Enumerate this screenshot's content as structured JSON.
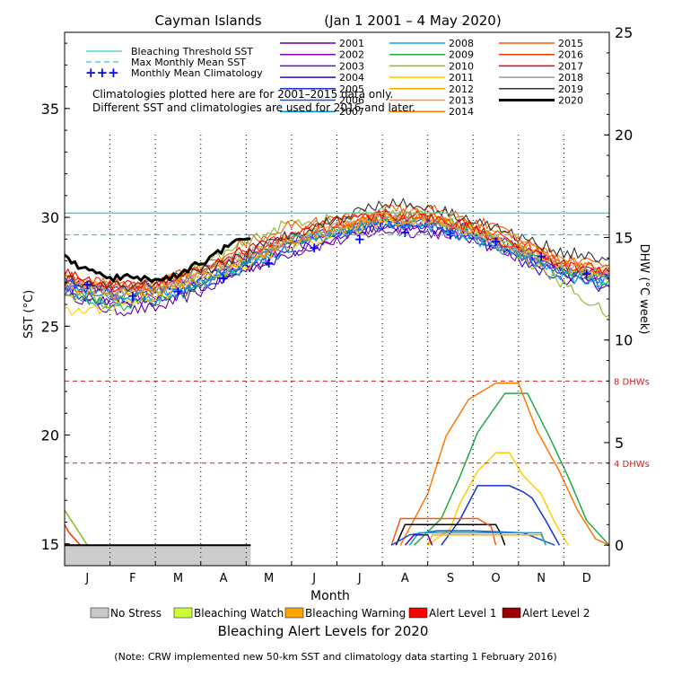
{
  "chart_data": {
    "type": "line",
    "title": "Cayman Islands",
    "subtitle": "(Jan 1 2001 – 4 May 2020)",
    "xlabel": "Month",
    "ylabel_left": "SST (°C)",
    "ylabel_right": "DHW (°C week)",
    "x_tick_labels": [
      "J",
      "F",
      "M",
      "A",
      "M",
      "J",
      "J",
      "A",
      "S",
      "O",
      "N",
      "D"
    ],
    "sst_ylim": [
      14,
      38.5
    ],
    "sst_yticks": [
      15,
      20,
      25,
      30,
      35
    ],
    "dhw_ylim": [
      -1,
      25
    ],
    "dhw_yticks": [
      0,
      5,
      10,
      15,
      20,
      25
    ],
    "bleaching_threshold_sst": 30.2,
    "max_monthly_mean_sst": 29.2,
    "dhw_reference_lines": [
      {
        "value": 8,
        "label": "8 DHWs",
        "color": "#cc2222"
      },
      {
        "value": 4,
        "label": "4 DHWs",
        "color": "#cc2222"
      }
    ],
    "legend_reference": [
      {
        "label": "Bleaching Threshold SST",
        "color": "#33cccc",
        "style": "solid"
      },
      {
        "label": "Max Monthly Mean SST",
        "color": "#33cccc",
        "style": "dashed"
      },
      {
        "label": "Monthly Mean Climatology",
        "color": "#0000ff",
        "style": "plus"
      }
    ],
    "note_lines": [
      "Climatologies plotted here are for 2001–2015 data only.",
      "Different SST and climatologies are used for 2016 and later."
    ],
    "monthly_mean_climatology": {
      "x": [
        0.5,
        1.5,
        2.5,
        3.5,
        4.5,
        5.5,
        6.5,
        7.5,
        8.5,
        9.5,
        10.5,
        11.5
      ],
      "sst": [
        26.9,
        26.4,
        26.6,
        27.2,
        27.9,
        28.6,
        29.0,
        29.3,
        29.2,
        28.9,
        28.2,
        27.4
      ]
    },
    "series": [
      {
        "name": "2001",
        "color": "#660099",
        "x": [
          0,
          1,
          2,
          3,
          4,
          5,
          6,
          7,
          8,
          9,
          10,
          11,
          12
        ],
        "sst": [
          26.6,
          25.7,
          25.8,
          26.6,
          27.6,
          28.4,
          28.9,
          29.4,
          29.3,
          29.1,
          28.2,
          27.3,
          26.9
        ]
      },
      {
        "name": "2002",
        "color": "#8800bb",
        "x": [
          0,
          1,
          2,
          3,
          4,
          5,
          6,
          7,
          8,
          9,
          10,
          11,
          12
        ],
        "sst": [
          26.8,
          26.1,
          26.3,
          26.9,
          27.7,
          28.7,
          29.1,
          29.6,
          29.5,
          29.1,
          28.3,
          27.5,
          27.1
        ]
      },
      {
        "name": "2003",
        "color": "#7700dd",
        "x": [
          0,
          1,
          2,
          3,
          4,
          5,
          6,
          7,
          8,
          9,
          10,
          11,
          12
        ],
        "sst": [
          27.0,
          26.6,
          26.8,
          27.3,
          28.0,
          28.9,
          29.3,
          29.8,
          29.7,
          29.4,
          28.6,
          27.7,
          27.3
        ]
      },
      {
        "name": "2004",
        "color": "#3300cc",
        "x": [
          0,
          1,
          2,
          3,
          4,
          5,
          6,
          7,
          8,
          9,
          10,
          11,
          12
        ],
        "sst": [
          26.7,
          26.0,
          26.1,
          26.8,
          27.6,
          28.4,
          29.1,
          29.6,
          29.5,
          29.0,
          28.0,
          27.1,
          26.8
        ]
      },
      {
        "name": "2005",
        "color": "#1133cc",
        "x": [
          0,
          1,
          2,
          3,
          4,
          5,
          6,
          7,
          8,
          9,
          10,
          11,
          12
        ],
        "sst": [
          27.0,
          26.6,
          26.7,
          27.2,
          28.2,
          29.0,
          29.4,
          29.9,
          29.7,
          29.3,
          28.5,
          27.6,
          27.2
        ]
      },
      {
        "name": "2006",
        "color": "#1155dd",
        "x": [
          0,
          1,
          2,
          3,
          4,
          5,
          6,
          7,
          8,
          9,
          10,
          11,
          12
        ],
        "sst": [
          26.9,
          26.4,
          26.6,
          27.1,
          27.9,
          28.9,
          29.3,
          29.9,
          29.7,
          29.2,
          28.4,
          27.5,
          27.2
        ]
      },
      {
        "name": "2007",
        "color": "#0088dd",
        "x": [
          0,
          1,
          2,
          3,
          4,
          5,
          6,
          7,
          8,
          9,
          10,
          11,
          12
        ],
        "sst": [
          27.0,
          26.3,
          26.4,
          27.0,
          28.0,
          28.9,
          29.3,
          29.7,
          29.6,
          29.1,
          28.3,
          27.6,
          27.1
        ]
      },
      {
        "name": "2008",
        "color": "#00aadd",
        "x": [
          0,
          1,
          2,
          3,
          4,
          5,
          6,
          7,
          8,
          9,
          10,
          11,
          12
        ],
        "sst": [
          26.6,
          26.0,
          26.3,
          26.9,
          27.7,
          28.6,
          29.2,
          29.8,
          29.6,
          29.0,
          28.3,
          27.3,
          26.9
        ]
      },
      {
        "name": "2009",
        "color": "#22aa44",
        "x": [
          0,
          1,
          2,
          3,
          4,
          5,
          6,
          7,
          8,
          9,
          10,
          11,
          12
        ],
        "sst": [
          26.7,
          25.9,
          26.1,
          26.8,
          28.0,
          29.0,
          29.4,
          30.1,
          30.0,
          29.5,
          28.6,
          27.6,
          27.1
        ]
      },
      {
        "name": "2010",
        "color": "#88bb22",
        "x": [
          0,
          1,
          2,
          3,
          4,
          5,
          6,
          7,
          8,
          9,
          10,
          11,
          12
        ],
        "sst": [
          26.4,
          26.3,
          26.7,
          27.8,
          28.8,
          29.8,
          29.9,
          30.3,
          30.0,
          29.4,
          28.3,
          26.9,
          25.5
        ]
      },
      {
        "name": "2011",
        "color": "#ffcc00",
        "x": [
          0,
          1,
          2,
          3,
          4,
          5,
          6,
          7,
          8,
          9,
          10,
          11,
          12
        ],
        "sst": [
          25.6,
          25.9,
          26.4,
          27.1,
          27.8,
          28.8,
          29.2,
          29.9,
          29.9,
          29.5,
          28.6,
          27.7,
          27.2
        ]
      },
      {
        "name": "2012",
        "color": "#ffaa00",
        "x": [
          0,
          1,
          2,
          3,
          4,
          5,
          6,
          7,
          8,
          9,
          10,
          11,
          12
        ],
        "sst": [
          27.2,
          26.7,
          26.8,
          27.4,
          28.2,
          29.0,
          29.5,
          30.0,
          29.9,
          29.4,
          28.6,
          27.8,
          27.4
        ]
      },
      {
        "name": "2013",
        "color": "#ff9933",
        "x": [
          0,
          1,
          2,
          3,
          4,
          5,
          6,
          7,
          8,
          9,
          10,
          11,
          12
        ],
        "sst": [
          27.3,
          26.8,
          26.9,
          27.6,
          28.2,
          29.1,
          29.5,
          30.0,
          29.8,
          29.4,
          28.7,
          27.9,
          27.6
        ]
      },
      {
        "name": "2014",
        "color": "#ff7700",
        "x": [
          0,
          1,
          2,
          3,
          4,
          5,
          6,
          7,
          8,
          9,
          10,
          11,
          12
        ],
        "sst": [
          26.9,
          26.5,
          26.6,
          27.3,
          28.1,
          28.9,
          29.6,
          30.1,
          30.2,
          29.7,
          28.9,
          28.0,
          27.6
        ]
      },
      {
        "name": "2015",
        "color": "#ff5500",
        "x": [
          0,
          1,
          2,
          3,
          4,
          5,
          6,
          7,
          8,
          9,
          10,
          11,
          12
        ],
        "sst": [
          27.2,
          26.9,
          26.8,
          27.7,
          28.9,
          29.6,
          29.9,
          30.3,
          30.4,
          29.9,
          29.0,
          28.1,
          27.8
        ]
      },
      {
        "name": "2016",
        "color": "#ff3300",
        "x": [
          0,
          1,
          2,
          3,
          4,
          5,
          6,
          7,
          8,
          9,
          10,
          11,
          12
        ],
        "sst": [
          27.3,
          26.9,
          27.0,
          27.6,
          28.4,
          29.2,
          29.6,
          30.1,
          30.0,
          29.6,
          28.8,
          27.9,
          27.5
        ]
      },
      {
        "name": "2017",
        "color": "#ee0000",
        "x": [
          0,
          1,
          2,
          3,
          4,
          5,
          6,
          7,
          8,
          9,
          10,
          11,
          12
        ],
        "sst": [
          27.4,
          26.8,
          27.0,
          27.7,
          28.5,
          29.2,
          29.8,
          30.1,
          30.0,
          29.5,
          28.6,
          27.8,
          27.5
        ]
      },
      {
        "name": "2018",
        "color": "#999999",
        "x": [
          0,
          1,
          2,
          3,
          4,
          5,
          6,
          7,
          8,
          9,
          10,
          11,
          12
        ],
        "sst": [
          27.0,
          26.6,
          26.7,
          27.4,
          28.3,
          29.0,
          29.5,
          29.9,
          29.8,
          29.3,
          28.5,
          27.7,
          27.3
        ]
      },
      {
        "name": "2019",
        "color": "#333333",
        "x": [
          0,
          1,
          2,
          3,
          4,
          5,
          6,
          7,
          8,
          9,
          10,
          11,
          12
        ],
        "sst": [
          27.1,
          26.8,
          26.9,
          27.5,
          28.3,
          29.3,
          29.9,
          30.7,
          30.5,
          29.9,
          29.1,
          28.4,
          28.1
        ]
      },
      {
        "name": "2020",
        "color": "#000000",
        "x": [
          0,
          0.3,
          0.7,
          1.0,
          1.3,
          1.6,
          2.0,
          2.4,
          2.8,
          3.1,
          3.3,
          3.6,
          3.95,
          4.1
        ],
        "sst": [
          28.1,
          27.8,
          27.4,
          27.2,
          27.2,
          27.3,
          27.1,
          27.3,
          27.7,
          28.0,
          28.4,
          28.6,
          29.0,
          29.0
        ]
      }
    ],
    "dhw_series": [
      {
        "name": "2009",
        "color": "#22aa44",
        "x": [
          7.7,
          8.3,
          8.7,
          9.1,
          9.7,
          10.2,
          10.7,
          11.1,
          11.5,
          12
        ],
        "dhw": [
          0,
          1.3,
          3.3,
          5.5,
          7.4,
          7.4,
          5.2,
          3.3,
          1.2,
          0
        ]
      },
      {
        "name": "2014",
        "color": "#ff7700",
        "x": [
          7.4,
          8.0,
          8.4,
          8.9,
          9.5,
          10.0,
          10.4,
          10.9,
          11.3,
          11.7,
          12
        ],
        "dhw": [
          0,
          2.5,
          5.3,
          7.1,
          7.9,
          7.9,
          5.6,
          3.6,
          1.7,
          0.3,
          0
        ]
      },
      {
        "name": "2010",
        "color": "#ffcc00",
        "x": [
          8.0,
          8.5,
          8.7,
          9.1,
          9.5,
          9.8,
          10.1,
          10.5,
          10.8,
          11.1
        ],
        "dhw": [
          0,
          0.8,
          2.0,
          3.6,
          4.5,
          4.5,
          3.4,
          2.5,
          1.1,
          0
        ]
      },
      {
        "name": "2005",
        "color": "#1133cc",
        "x": [
          8.3,
          8.7,
          9.1,
          9.5,
          9.8,
          10.1,
          10.3,
          10.6,
          10.9
        ],
        "dhw": [
          0,
          1.2,
          2.9,
          2.9,
          2.9,
          2.6,
          2.3,
          1.2,
          0
        ]
      },
      {
        "name": "2019",
        "color": "#000000",
        "x": [
          7.3,
          7.5,
          8.2,
          9.1,
          9.5,
          9.6,
          9.7
        ],
        "dhw": [
          0,
          1.0,
          1.0,
          1.0,
          1.0,
          0.6,
          0
        ]
      },
      {
        "name": "2015",
        "color": "#ff5500",
        "x": [
          7.2,
          7.4,
          8.1,
          9.1,
          9.4,
          9.5
        ],
        "dhw": [
          0,
          1.3,
          1.3,
          1.3,
          0.9,
          0
        ]
      },
      {
        "name": "2006",
        "color": "#1155dd",
        "x": [
          7.2,
          7.6,
          8.2,
          9.0,
          10.1,
          10.8
        ],
        "dhw": [
          0,
          0.5,
          0.7,
          0.7,
          0.6,
          0
        ]
      },
      {
        "name": "2011",
        "color": "#ffaa00",
        "x": [
          8.0,
          8.1,
          9.0,
          10.5,
          10.6
        ],
        "dhw": [
          0,
          0.5,
          0.5,
          0.5,
          0
        ]
      },
      {
        "name": "2008",
        "color": "#00aadd",
        "x": [
          7.6,
          7.8,
          9.3,
          10.5,
          10.6
        ],
        "dhw": [
          0,
          0.6,
          0.6,
          0.6,
          0
        ]
      },
      {
        "name": "2001",
        "color": "#660099",
        "x": [
          7.5,
          7.7,
          8.0,
          8.1
        ],
        "dhw": [
          0,
          0.5,
          0.5,
          0
        ]
      },
      {
        "name": "2010 early",
        "color": "#88bb22",
        "x": [
          0,
          0.15,
          0.5
        ],
        "dhw": [
          1.7,
          1.2,
          0
        ]
      },
      {
        "name": "2015 early",
        "color": "#ff3300",
        "x": [
          0,
          0.1,
          0.35
        ],
        "dhw": [
          1.0,
          0.6,
          0
        ]
      },
      {
        "name": "2020",
        "color": "#000000",
        "x": [
          0,
          4.1
        ],
        "dhw": [
          0,
          0
        ]
      }
    ],
    "alert_bar": {
      "label_period_months": [
        0,
        4.1
      ],
      "current_level": "No Stress",
      "color": "#cccccc"
    },
    "alert_legend": [
      {
        "label": "No Stress",
        "color": "#c8c8c8"
      },
      {
        "label": "Bleaching Watch",
        "color": "#ccff33"
      },
      {
        "label": "Bleaching Warning",
        "color": "#ffa500"
      },
      {
        "label": "Alert Level 1",
        "color": "#ff0000"
      },
      {
        "label": "Alert Level 2",
        "color": "#990000"
      }
    ],
    "alert_title": "Bleaching Alert Levels for 2020",
    "footnote": "(Note: CRW implemented new 50-km SST and climatology data starting 1 February 2016)"
  }
}
